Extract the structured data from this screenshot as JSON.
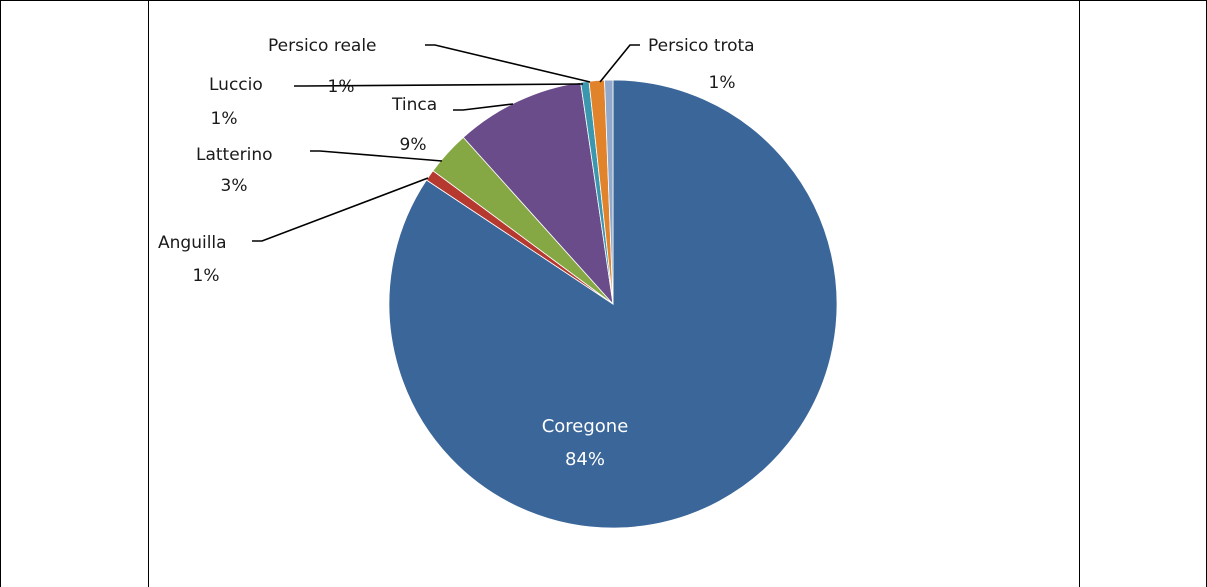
{
  "chart_data": {
    "type": "pie",
    "slices": [
      {
        "name": "Coregone",
        "pct_label": "84%",
        "value": 84.0,
        "color": "#3B6699",
        "label_inside": true
      },
      {
        "name": "Anguilla",
        "pct_label": "1%",
        "value": 0.8,
        "color": "#B5392F"
      },
      {
        "name": "Latterino",
        "pct_label": "3%",
        "value": 3.2,
        "color": "#86A844"
      },
      {
        "name": "Tinca",
        "pct_label": "9%",
        "value": 9.3,
        "color": "#6B4C8A"
      },
      {
        "name": "Luccio",
        "pct_label": "1%",
        "value": 0.6,
        "color": "#3B97AE"
      },
      {
        "name": "Persico reale",
        "pct_label": "1%",
        "value": 1.1,
        "color": "#E0832B"
      },
      {
        "name": "Persico trota",
        "pct_label": "1%",
        "value": 0.6,
        "color": "#93A9CC"
      }
    ]
  }
}
